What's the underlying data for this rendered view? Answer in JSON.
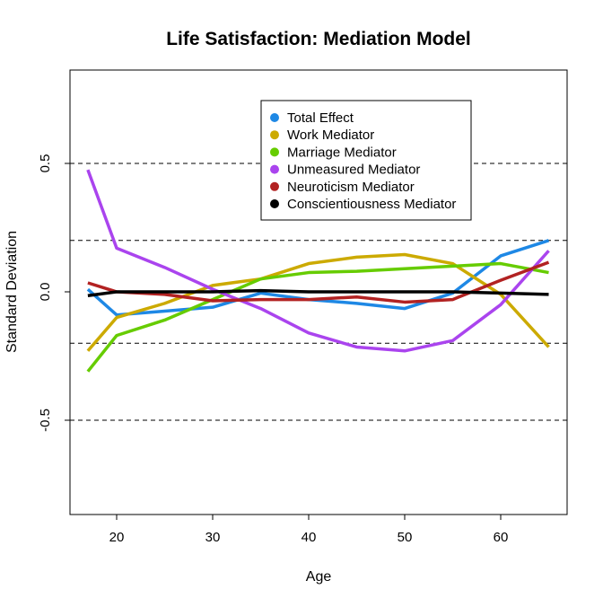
{
  "chart_data": {
    "type": "line",
    "title": "Life Satisfaction: Mediation Model",
    "xlabel": "Age",
    "ylabel": "Standard Deviation",
    "xlim": [
      15,
      67
    ],
    "ylim": [
      -0.865,
      0.865
    ],
    "x_ticks": [
      20,
      30,
      40,
      50,
      60
    ],
    "y_ticks": [
      -0.5,
      0.0,
      0.5
    ],
    "y_tick_labels": [
      "-0.5",
      "0.0",
      "0.5"
    ],
    "reference_lines": [
      0.5,
      0.2,
      -0.2,
      -0.5
    ],
    "grid": false,
    "legend_position": "top-center",
    "x": [
      17,
      20,
      25,
      30,
      35,
      40,
      45,
      50,
      55,
      60,
      65
    ],
    "series": [
      {
        "name": "Total Effect",
        "color": "#1e88e5",
        "values": [
          0.01,
          -0.09,
          -0.075,
          -0.06,
          -0.005,
          -0.03,
          -0.045,
          -0.065,
          -0.005,
          0.14,
          0.2
        ]
      },
      {
        "name": "Work Mediator",
        "color": "#ccaa00",
        "values": [
          -0.23,
          -0.1,
          -0.045,
          0.025,
          0.05,
          0.11,
          0.135,
          0.145,
          0.11,
          -0.01,
          -0.215
        ]
      },
      {
        "name": "Marriage Mediator",
        "color": "#66cc00",
        "values": [
          -0.31,
          -0.17,
          -0.11,
          -0.03,
          0.05,
          0.075,
          0.08,
          0.09,
          0.1,
          0.11,
          0.075
        ]
      },
      {
        "name": "Unmeasured Mediator",
        "color": "#aa44ee",
        "values": [
          0.475,
          0.17,
          0.095,
          0.01,
          -0.065,
          -0.16,
          -0.215,
          -0.23,
          -0.19,
          -0.05,
          0.16
        ]
      },
      {
        "name": "Neuroticism Mediator",
        "color": "#b22222",
        "values": [
          0.035,
          0.0,
          -0.01,
          -0.035,
          -0.03,
          -0.03,
          -0.02,
          -0.04,
          -0.03,
          0.045,
          0.115
        ]
      },
      {
        "name": "Conscientiousness Mediator",
        "color": "#000000",
        "values": [
          -0.015,
          0.0,
          0.0,
          0.0,
          0.005,
          0.0,
          0.0,
          0.0,
          0.0,
          -0.005,
          -0.01
        ]
      }
    ]
  }
}
